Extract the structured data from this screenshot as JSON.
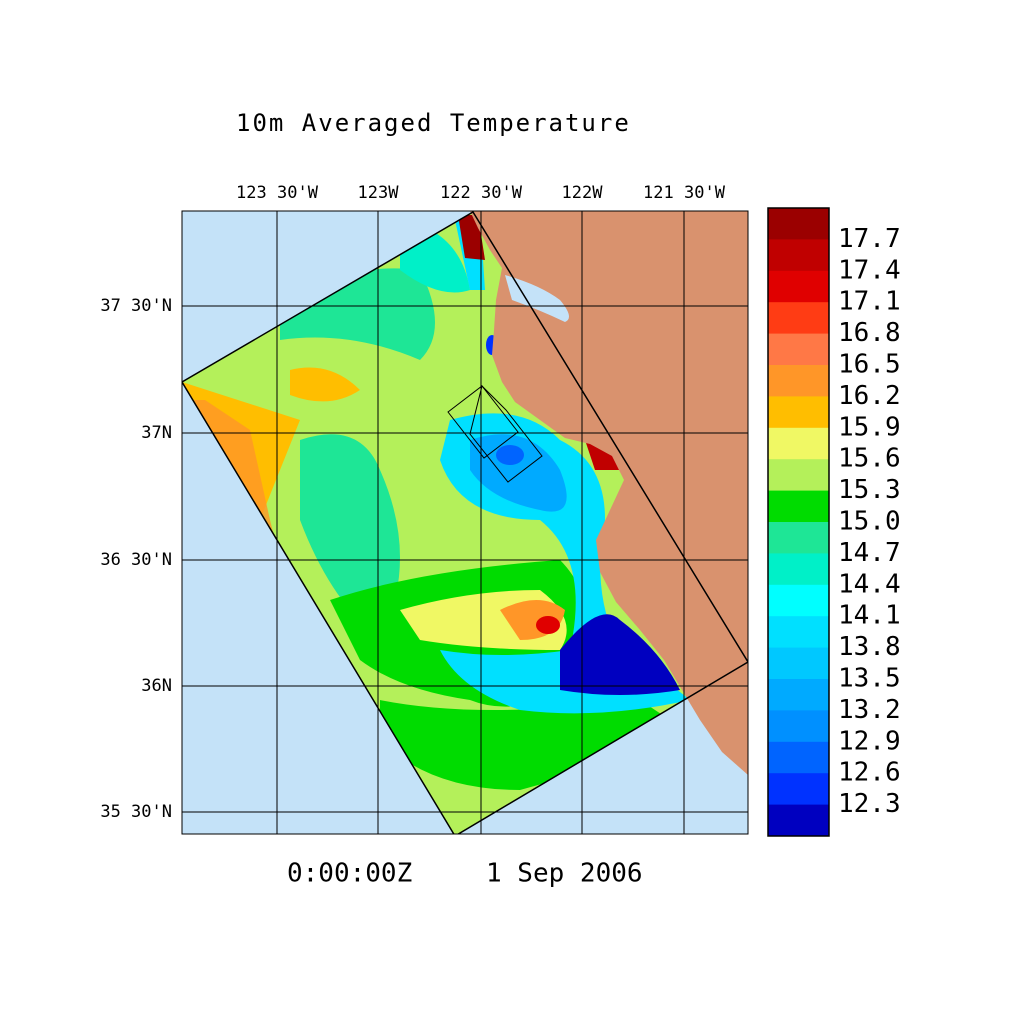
{
  "title": "10m Averaged Temperature",
  "longitude_labels": [
    "123 30'W",
    "123W",
    "122 30'W",
    "122W",
    "121 30'W"
  ],
  "latitude_labels": [
    "37 30'N",
    "37N",
    "36 30'N",
    "36N",
    "35 30'N"
  ],
  "timestamp": {
    "time": "0:00:00Z",
    "date": "1 Sep 2006"
  },
  "colorbar": {
    "labels": [
      "17.7",
      "17.4",
      "17.1",
      "16.8",
      "16.5",
      "16.2",
      "15.9",
      "15.6",
      "15.3",
      "15.0",
      "14.7",
      "14.4",
      "14.1",
      "13.8",
      "13.5",
      "13.2",
      "12.9",
      "12.6",
      "12.3"
    ],
    "colors": [
      "#9b0000",
      "#c00000",
      "#e00000",
      "#ff3c14",
      "#ff7846",
      "#ff9628",
      "#ffbe00",
      "#f0f864",
      "#b4f05a",
      "#00dc00",
      "#1ee696",
      "#00f0c8",
      "#00ffff",
      "#00e0ff",
      "#00c8ff",
      "#00aaff",
      "#0090ff",
      "#0064ff",
      "#0032ff",
      "#0000c0"
    ]
  }
}
